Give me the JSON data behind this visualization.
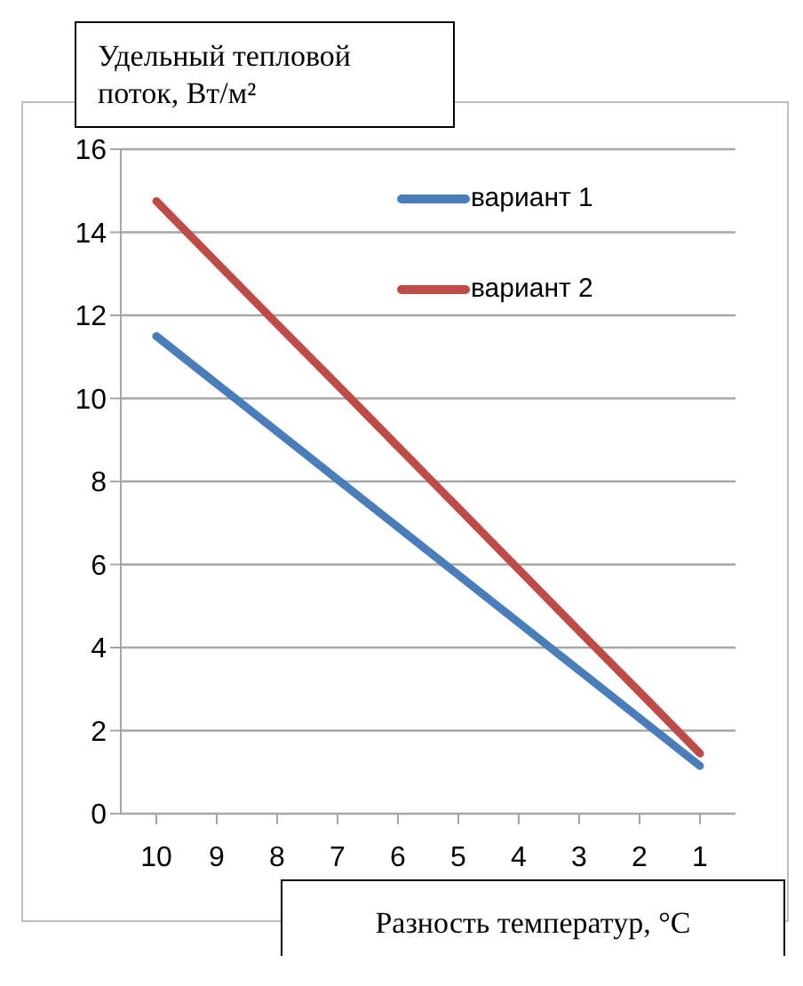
{
  "chart_data": {
    "type": "line",
    "xlabel": "Разность температур, °C",
    "ylabel": "Удельный тепловой поток, Вт/м²",
    "categories": [
      "10",
      "9",
      "8",
      "7",
      "6",
      "5",
      "4",
      "3",
      "2",
      "1"
    ],
    "series": [
      {
        "name": "вариант 1",
        "color": "#4a7ebb",
        "values": [
          11.5,
          10.35,
          9.2,
          8.05,
          6.9,
          5.75,
          4.6,
          3.45,
          2.3,
          1.15
        ]
      },
      {
        "name": "вариант 2",
        "color": "#be4b48",
        "values": [
          14.75,
          13.27,
          11.79,
          10.32,
          8.84,
          7.36,
          5.88,
          4.4,
          2.93,
          1.45
        ]
      }
    ],
    "ylim": [
      0,
      16
    ],
    "yticks": [
      0,
      2,
      4,
      6,
      8,
      10,
      12,
      14,
      16
    ],
    "grid": "y",
    "legend": "top right",
    "marker": "none",
    "line_style": "solid"
  }
}
